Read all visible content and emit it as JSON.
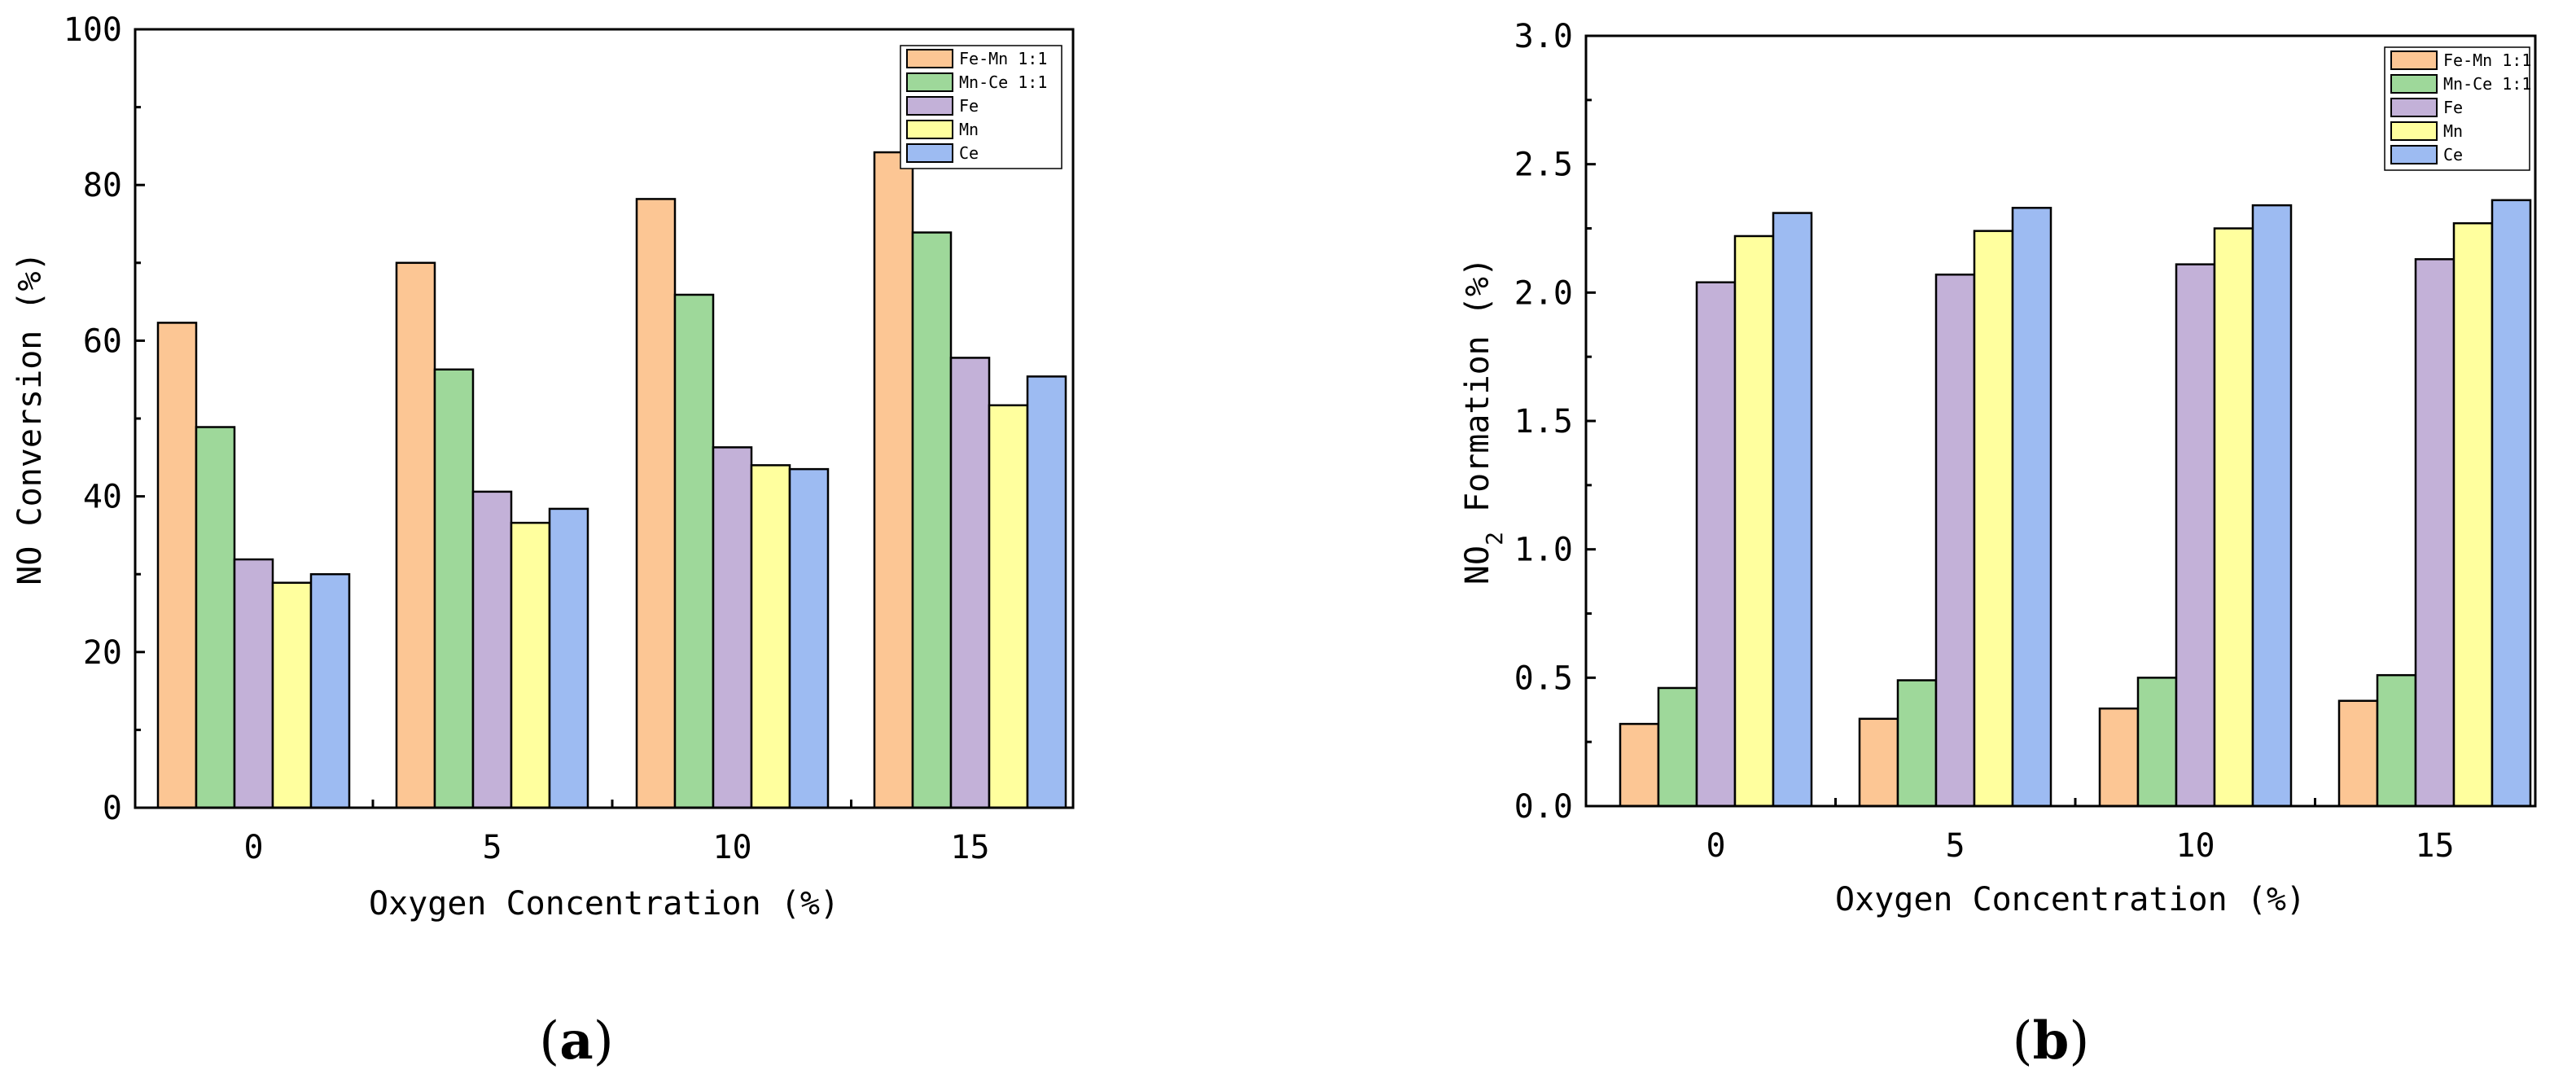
{
  "colors": {
    "Fe-Mn 1:1": "#FCC694",
    "Mn-Ce 1:1": "#9ED89A",
    "Fe": "#C3B1D8",
    "Mn": "#FFFF9E",
    "Ce": "#9DBBF2"
  },
  "chart_data": [
    {
      "type": "bar",
      "panel_label": "a",
      "title": "",
      "xlabel": "Oxygen Concentration (%)",
      "ylabel": "NO Conversion (%)",
      "ylabel_parts": {
        "prefix": "NO Conversion (%)",
        "subscript": "",
        "suffix": ""
      },
      "categories": [
        "0",
        "5",
        "10",
        "15"
      ],
      "ylim": [
        0,
        100
      ],
      "yticks": [
        "0",
        "20",
        "40",
        "60",
        "80",
        "100"
      ],
      "legend_position": "top-right",
      "series": [
        {
          "name": "Fe-Mn 1:1",
          "values": [
            62.3,
            70.0,
            78.2,
            84.2
          ]
        },
        {
          "name": "Mn-Ce 1:1",
          "values": [
            48.9,
            56.3,
            65.9,
            73.9
          ]
        },
        {
          "name": "Fe",
          "values": [
            31.9,
            40.6,
            46.3,
            57.8
          ]
        },
        {
          "name": "Mn",
          "values": [
            28.9,
            36.6,
            44.0,
            51.7
          ]
        },
        {
          "name": "Ce",
          "values": [
            30.0,
            38.4,
            43.5,
            55.4
          ]
        }
      ]
    },
    {
      "type": "bar",
      "panel_label": "b",
      "title": "",
      "xlabel": "Oxygen Concentration (%)",
      "ylabel": "NO2 Formation (%)",
      "ylabel_parts": {
        "prefix": "NO",
        "subscript": "2",
        "suffix": " Formation (%)"
      },
      "categories": [
        "0",
        "5",
        "10",
        "15"
      ],
      "ylim": [
        0,
        3.0
      ],
      "yticks": [
        "0.0",
        "0.5",
        "1.0",
        "1.5",
        "2.0",
        "2.5",
        "3.0"
      ],
      "legend_position": "top-right",
      "series": [
        {
          "name": "Fe-Mn 1:1",
          "values": [
            0.32,
            0.34,
            0.38,
            0.41
          ]
        },
        {
          "name": "Mn-Ce 1:1",
          "values": [
            0.46,
            0.49,
            0.5,
            0.51
          ]
        },
        {
          "name": "Fe",
          "values": [
            2.04,
            2.07,
            2.11,
            2.13
          ]
        },
        {
          "name": "Mn",
          "values": [
            2.22,
            2.24,
            2.25,
            2.27
          ]
        },
        {
          "name": "Ce",
          "values": [
            2.31,
            2.33,
            2.34,
            2.36
          ]
        }
      ]
    }
  ]
}
